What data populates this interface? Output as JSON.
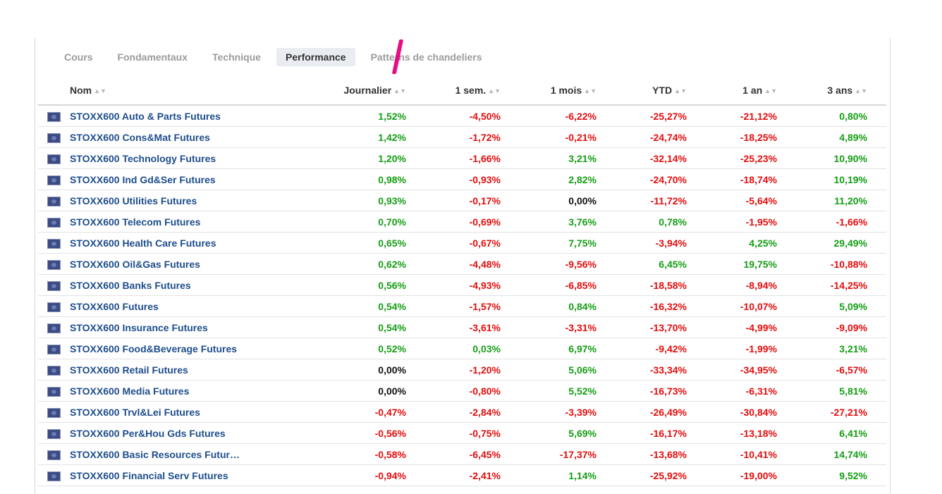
{
  "tabs": [
    "Cours",
    "Fondamentaux",
    "Technique",
    "Performance",
    "Patterns de chandeliers"
  ],
  "active_tab": "Performance",
  "columns": [
    "Nom",
    "Journalier",
    "1 sem.",
    "1 mois",
    "YTD",
    "1 an",
    "3 ans"
  ],
  "rows": [
    {
      "name": "STOXX600 Auto & Parts Futures",
      "values": [
        "1,52%",
        "-4,50%",
        "-6,22%",
        "-25,27%",
        "-21,12%",
        "0,80%"
      ]
    },
    {
      "name": "STOXX600 Cons&Mat Futures",
      "values": [
        "1,42%",
        "-1,72%",
        "-0,21%",
        "-24,74%",
        "-18,25%",
        "4,89%"
      ]
    },
    {
      "name": "STOXX600 Technology Futures",
      "values": [
        "1,20%",
        "-1,66%",
        "3,21%",
        "-32,14%",
        "-25,23%",
        "10,90%"
      ]
    },
    {
      "name": "STOXX600 Ind Gd&Ser Futures",
      "values": [
        "0,98%",
        "-0,93%",
        "2,82%",
        "-24,70%",
        "-18,74%",
        "10,19%"
      ]
    },
    {
      "name": "STOXX600 Utilities Futures",
      "values": [
        "0,93%",
        "-0,17%",
        "0,00%",
        "-11,72%",
        "-5,64%",
        "11,20%"
      ]
    },
    {
      "name": "STOXX600 Telecom Futures",
      "values": [
        "0,70%",
        "-0,69%",
        "3,76%",
        "0,78%",
        "-1,95%",
        "-1,66%"
      ]
    },
    {
      "name": "STOXX600 Health Care Futures",
      "values": [
        "0,65%",
        "-0,67%",
        "7,75%",
        "-3,94%",
        "4,25%",
        "29,49%"
      ]
    },
    {
      "name": "STOXX600 Oil&Gas Futures",
      "values": [
        "0,62%",
        "-4,48%",
        "-9,56%",
        "6,45%",
        "19,75%",
        "-10,88%"
      ]
    },
    {
      "name": "STOXX600 Banks Futures",
      "values": [
        "0,56%",
        "-4,93%",
        "-6,85%",
        "-18,58%",
        "-8,94%",
        "-14,25%"
      ]
    },
    {
      "name": "STOXX600 Futures",
      "values": [
        "0,54%",
        "-1,57%",
        "0,84%",
        "-16,32%",
        "-10,07%",
        "5,09%"
      ]
    },
    {
      "name": "STOXX600 Insurance Futures",
      "values": [
        "0,54%",
        "-3,61%",
        "-3,31%",
        "-13,70%",
        "-4,99%",
        "-9,09%"
      ]
    },
    {
      "name": "STOXX600 Food&Beverage Futures",
      "values": [
        "0,52%",
        "0,03%",
        "6,97%",
        "-9,42%",
        "-1,99%",
        "3,21%"
      ]
    },
    {
      "name": "STOXX600 Retail Futures",
      "values": [
        "0,00%",
        "-1,20%",
        "5,06%",
        "-33,34%",
        "-34,95%",
        "-6,57%"
      ]
    },
    {
      "name": "STOXX600 Media Futures",
      "values": [
        "0,00%",
        "-0,80%",
        "5,52%",
        "-16,73%",
        "-6,31%",
        "5,81%"
      ]
    },
    {
      "name": "STOXX600 Trvl&Lei Futures",
      "values": [
        "-0,47%",
        "-2,84%",
        "-3,39%",
        "-26,49%",
        "-30,84%",
        "-27,21%"
      ]
    },
    {
      "name": "STOXX600 Per&Hou Gds Futures",
      "values": [
        "-0,56%",
        "-0,75%",
        "5,69%",
        "-16,17%",
        "-13,18%",
        "6,41%"
      ]
    },
    {
      "name": "STOXX600 Basic Resources Futur…",
      "values": [
        "-0,58%",
        "-6,45%",
        "-17,37%",
        "-13,68%",
        "-10,41%",
        "14,74%"
      ]
    },
    {
      "name": "STOXX600 Financial Serv Futures",
      "values": [
        "-0,94%",
        "-2,41%",
        "1,14%",
        "-25,92%",
        "-19,00%",
        "9,52%"
      ]
    }
  ],
  "colors": {
    "positive": "#159e15",
    "negative": "#e30d0d",
    "zero": "#111111",
    "link": "#1e4d8c",
    "annotation": "#e6007e"
  }
}
